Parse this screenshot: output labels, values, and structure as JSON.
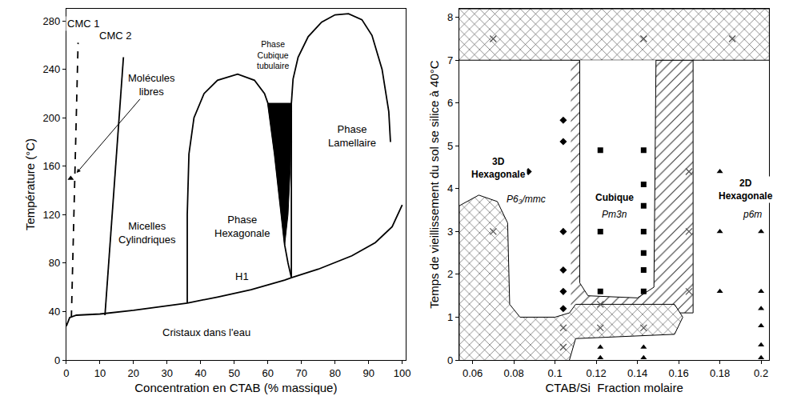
{
  "chart_data": [
    {
      "type": "line",
      "x_label": "Concentration en CTAB (% massique)",
      "y_label": "Température (°C)",
      "xlim": [
        0,
        101
      ],
      "ylim": [
        0,
        290
      ],
      "xticks": [
        0,
        10,
        20,
        30,
        40,
        50,
        60,
        70,
        80,
        90,
        100
      ],
      "yticks": [
        0,
        40,
        80,
        120,
        160,
        200,
        240,
        280
      ],
      "series": [
        {
          "type": "area",
          "color": "#000000",
          "x": [
            60,
            67,
            66.7,
            66,
            65,
            64,
            62,
            60
          ],
          "y": [
            212,
            212,
            160,
            120,
            95,
            120,
            170,
            212
          ]
        },
        {
          "line_style": "dashed",
          "color": "#000000",
          "x": [
            1.5,
            3.5
          ],
          "y": [
            35,
            262
          ]
        },
        {
          "line_style": "solid",
          "color": "#000000",
          "x": [
            11.5,
            17
          ],
          "y": [
            37,
            250
          ]
        },
        {
          "line_style": "solid",
          "color": "#000000",
          "x": [
            0,
            1,
            3,
            10,
            20,
            30,
            36,
            45,
            55,
            65,
            67,
            75,
            85,
            92,
            97,
            100
          ],
          "y": [
            28,
            35,
            37,
            38,
            41,
            45,
            47,
            52,
            58,
            66,
            68,
            75,
            86,
            97,
            110,
            128
          ]
        },
        {
          "line_style": "solid",
          "color": "#000000",
          "x": [
            36,
            36,
            36.5,
            38,
            41,
            45,
            51,
            56,
            59,
            60,
            62,
            64,
            65,
            66,
            67
          ],
          "y": [
            47,
            120,
            170,
            200,
            220,
            231,
            236,
            231,
            220,
            212,
            170,
            120,
            95,
            80,
            68
          ]
        },
        {
          "line_style": "solid",
          "color": "#000000",
          "x": [
            67,
            67,
            67.5,
            69,
            72,
            76,
            80,
            84,
            88,
            91,
            94,
            96,
            96.5
          ],
          "y": [
            68,
            212,
            232,
            250,
            267,
            279,
            285,
            286,
            281,
            268,
            240,
            205,
            180
          ]
        },
        {
          "type": "scatter",
          "marker": "triangle-up",
          "color": "#000000",
          "x": [
            1.3
          ],
          "y": [
            150
          ]
        }
      ],
      "annotations": [
        {
          "text": "CMC 1",
          "x": 5,
          "y": 278
        },
        {
          "text": "CMC 2",
          "x": 14.5,
          "y": 268
        },
        {
          "text": "Molécules\nlibres",
          "x": 25.5,
          "y": 227,
          "points_to": [
            2.3,
            152
          ]
        },
        {
          "text": "Micelles\nCylindriques",
          "x": 24,
          "y": 105
        },
        {
          "text": "Phase\nHexagonale",
          "x": 52.4,
          "y": 110
        },
        {
          "text": "H1",
          "x": 52.4,
          "y": 69
        },
        {
          "text": "Phase\nCubique\ntubulaire",
          "x": 61.5,
          "y": 252
        },
        {
          "text": "Phase\nLamellaire",
          "x": 85,
          "y": 185
        },
        {
          "text": "Cristaux dans l'eau",
          "x": 41.7,
          "y": 23
        }
      ]
    },
    {
      "type": "scatter",
      "x_label": "CTAB/Si  Fraction molaire",
      "y_label": "Temps de vieillissement du sol se silice à 40°C",
      "xlim": [
        0.0535,
        0.204
      ],
      "ylim": [
        0,
        8.2
      ],
      "xticks": [
        0.06,
        0.08,
        0.1,
        0.12,
        0.14,
        0.16,
        0.18,
        0.2
      ],
      "yticks": [
        0,
        1,
        2,
        3,
        4,
        5,
        6,
        7,
        8
      ],
      "series": [
        {
          "type": "area",
          "marker": "/",
          "x": [
            0.1077,
            0.167,
            0.167,
            0.1077
          ],
          "y": [
            7,
            7,
            1.1,
            1.1
          ]
        },
        {
          "type": "area",
          "marker": "x",
          "x": [
            0.0535,
            0.204,
            0.204,
            0.0535
          ],
          "y": [
            7,
            7,
            8.2,
            8.2
          ]
        },
        {
          "type": "area",
          "marker": "x",
          "x": [
            0.0535,
            0.0535,
            0.063,
            0.072,
            0.077,
            0.078,
            0.083,
            0.1,
            0.107,
            0.11,
            0.158,
            0.162,
            0.158,
            0.11,
            0.107
          ],
          "y": [
            0,
            3.6,
            3.85,
            3.7,
            3.2,
            1.3,
            1.0,
            1.0,
            1.1,
            1.3,
            1.3,
            1.0,
            0.6,
            0.5,
            0
          ]
        },
        {
          "type": "area",
          "color": "#ffffff",
          "x": [
            0.112,
            0.112,
            0.116,
            0.14,
            0.148,
            0.149
          ],
          "y": [
            7,
            1.8,
            1.5,
            1.45,
            1.7,
            7
          ]
        },
        {
          "marker": "diamond",
          "color": "#000000",
          "x": [
            0.104,
            0.104,
            0.087,
            0.104,
            0.104,
            0.104,
            0.104
          ],
          "y": [
            5.6,
            5.1,
            4.4,
            3.0,
            2.1,
            1.6,
            1.2
          ]
        },
        {
          "marker": "square",
          "color": "#000000",
          "x": [
            0.122,
            0.122,
            0.122,
            0.143,
            0.143,
            0.143,
            0.143,
            0.143,
            0.143,
            0.143
          ],
          "y": [
            4.9,
            3.0,
            1.6,
            4.9,
            4.1,
            3.6,
            3.0,
            2.5,
            2.1,
            1.6
          ]
        },
        {
          "marker": "triangle-up",
          "color": "#000000",
          "x": [
            0.18,
            0.18,
            0.18,
            0.2,
            0.2,
            0.2,
            0.2,
            0.2,
            0.2,
            0.122,
            0.122,
            0.143,
            0.143
          ],
          "y": [
            4.4,
            3.0,
            1.6,
            3.0,
            1.6,
            1.2,
            0.8,
            0.35,
            0.05,
            0.3,
            0.05,
            0.3,
            0.05
          ]
        },
        {
          "marker": "x-thin",
          "color": "#555555",
          "x": [
            0.07,
            0.143,
            0.186,
            0.07,
            0.104,
            0.104,
            0.122,
            0.122,
            0.143,
            0.165,
            0.165,
            0.165
          ],
          "y": [
            7.5,
            7.5,
            7.5,
            3.0,
            0.75,
            0.3,
            1.3,
            0.75,
            0.75,
            4.4,
            3.0,
            1.6
          ]
        }
      ],
      "annotations": [
        {
          "text": "3D\nHexagonale",
          "x": 0.0725,
          "y": 4.48
        },
        {
          "text": "Cubique",
          "x": 0.1287,
          "y": 3.8
        },
        {
          "text": "2D\nHexagonale",
          "x": 0.1925,
          "y": 3.98
        }
      ],
      "space_groups": [
        {
          "text": "P6₃/mmc",
          "x": 0.086,
          "y": 3.75
        },
        {
          "text": "Pm3n",
          "x": 0.1287,
          "y": 3.4
        },
        {
          "text": "p6m",
          "x": 0.1955,
          "y": 3.4
        }
      ]
    }
  ]
}
